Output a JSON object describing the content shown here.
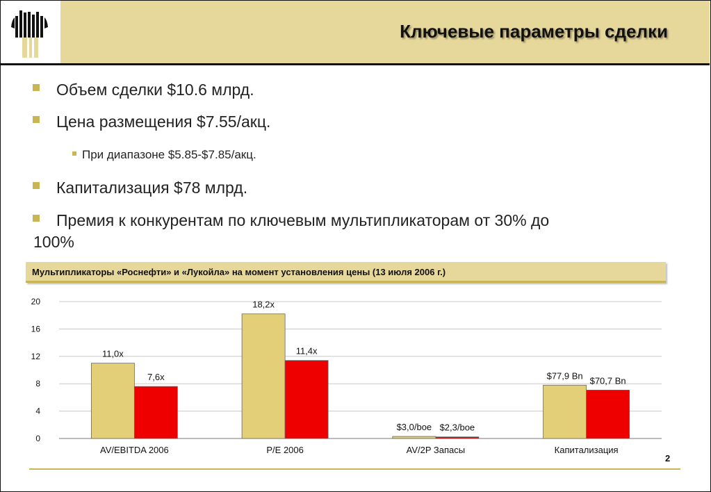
{
  "header": {
    "title": "Ключевые параметры сделки",
    "logo": "rosneft-logo"
  },
  "bullets": [
    "Объем сделки $10.6 млрд.",
    "Цена размещения $7.55/акц.",
    "Капитализация $78 млрд.",
    "Премия к конкурентам по ключевым мультипликаторам от 30% до",
    "100%"
  ],
  "sub_bullet": "При диапазоне $5.85-$7.85/акц.",
  "colors": {
    "accent": "#e6d79a",
    "rosneft": "#e3cf78",
    "lukoil": "#ee0000"
  },
  "page_number": "2",
  "chart_data": {
    "type": "bar",
    "title": "Мультипликаторы «Роснефти» и «Лукойла» на момент установления цены (13 июля 2006 г.)",
    "categories": [
      "AV/EBITDA 2006",
      "P/E 2006",
      "AV/2P Запасы",
      "Капитализация"
    ],
    "series": [
      {
        "values": [
          11.0,
          18.2,
          0.3,
          7.79
        ],
        "labels": [
          "11,0x",
          "18,2x",
          "$3,0/boe",
          "$77,9 Bn"
        ],
        "color": "#e3cf78"
      },
      {
        "values": [
          7.6,
          11.4,
          0.23,
          7.07
        ],
        "labels": [
          "7,6x",
          "11,4x",
          "$2,3/boe",
          "$70,7 Bn"
        ],
        "color": "#ee0000"
      }
    ],
    "yticks": [
      0,
      4,
      8,
      12,
      16,
      20
    ],
    "ylim": [
      0,
      20
    ],
    "grid": true,
    "legend": "none"
  }
}
